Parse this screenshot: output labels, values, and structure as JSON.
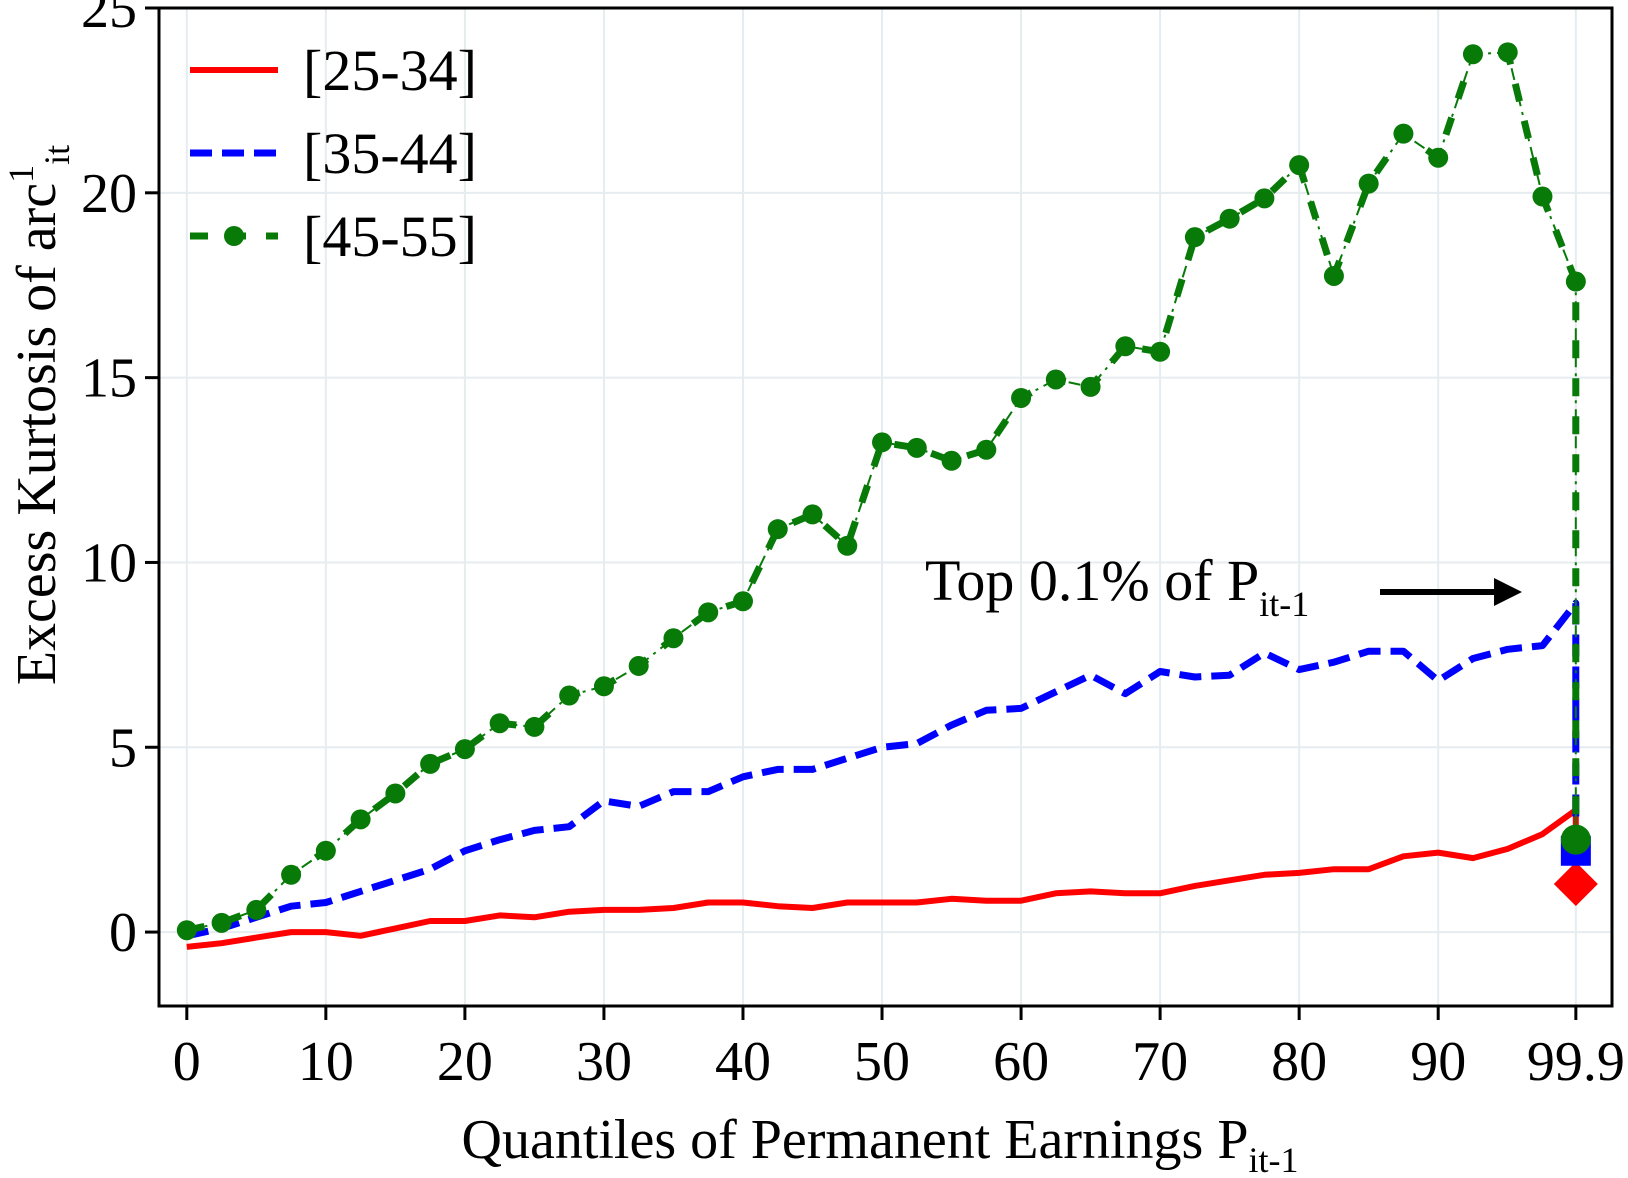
{
  "chart_data": {
    "type": "line",
    "title": "",
    "xlabel": "Quantiles of Permanent Earnings P",
    "xlabel_subscript": "it-1",
    "ylabel": "Excess Kurtosis of arc",
    "ylabel_superscript": "1",
    "ylabel_subscript": "it",
    "xlim": [
      -2,
      102.5
    ],
    "ylim": [
      -2,
      25
    ],
    "x_ticks": [
      {
        "value": 0,
        "label": "0"
      },
      {
        "value": 10,
        "label": "10"
      },
      {
        "value": 20,
        "label": "20"
      },
      {
        "value": 30,
        "label": "30"
      },
      {
        "value": 40,
        "label": "40"
      },
      {
        "value": 50,
        "label": "50"
      },
      {
        "value": 60,
        "label": "60"
      },
      {
        "value": 70,
        "label": "70"
      },
      {
        "value": 80,
        "label": "80"
      },
      {
        "value": 90,
        "label": "90"
      },
      {
        "value": 99.9,
        "label": "99.9"
      }
    ],
    "y_ticks": [
      {
        "value": 0,
        "label": "0"
      },
      {
        "value": 5,
        "label": "5"
      },
      {
        "value": 10,
        "label": "10"
      },
      {
        "value": 15,
        "label": "15"
      },
      {
        "value": 20,
        "label": "20"
      },
      {
        "value": 25,
        "label": "25"
      }
    ],
    "grid": true,
    "legend_position": "top-left",
    "x": [
      0,
      2.5,
      5,
      7.5,
      10,
      12.5,
      15,
      17.5,
      20,
      22.5,
      25,
      27.5,
      30,
      32.5,
      35,
      37.5,
      40,
      42.5,
      45,
      47.5,
      50,
      52.5,
      55,
      57.5,
      60,
      62.5,
      65,
      67.5,
      70,
      72.5,
      75,
      77.5,
      80,
      82.5,
      85,
      87.5,
      90,
      92.5,
      95,
      97.5,
      99.9
    ],
    "series": [
      {
        "name": "[25-34]",
        "color": "#ff0000",
        "style": "solid",
        "values": [
          -0.4,
          -0.3,
          -0.15,
          0,
          0,
          -0.1,
          0.1,
          0.3,
          0.3,
          0.45,
          0.4,
          0.55,
          0.6,
          0.6,
          0.65,
          0.8,
          0.8,
          0.7,
          0.65,
          0.8,
          0.8,
          0.8,
          0.9,
          0.85,
          0.85,
          1.05,
          1.1,
          1.05,
          1.05,
          1.25,
          1.4,
          1.55,
          1.6,
          1.7,
          1.7,
          2.05,
          2.15,
          2.0,
          2.25,
          2.65,
          3.3
        ],
        "top_point": {
          "x": 99.9,
          "y": 1.3,
          "marker": "diamond"
        }
      },
      {
        "name": "[35-44]",
        "color": "#0000ff",
        "style": "dashed",
        "values": [
          -0.1,
          0.1,
          0.4,
          0.7,
          0.8,
          1.1,
          1.4,
          1.7,
          2.2,
          2.5,
          2.75,
          2.85,
          3.55,
          3.4,
          3.8,
          3.8,
          4.2,
          4.4,
          4.4,
          4.7,
          5.0,
          5.1,
          5.6,
          6.0,
          6.05,
          6.5,
          6.95,
          6.45,
          7.05,
          6.9,
          6.95,
          7.55,
          7.1,
          7.3,
          7.6,
          7.6,
          6.8,
          7.4,
          7.65,
          7.75,
          8.9
        ],
        "top_point": {
          "x": 99.9,
          "y": 2.2,
          "marker": "square"
        }
      },
      {
        "name": "[45-55]",
        "color": "#087a08",
        "style": "dash-dot with circle markers",
        "values": [
          0.05,
          0.25,
          0.6,
          1.55,
          2.2,
          3.05,
          3.75,
          4.55,
          4.95,
          5.65,
          5.55,
          6.4,
          6.65,
          7.2,
          7.95,
          8.65,
          8.95,
          10.9,
          11.3,
          10.45,
          13.25,
          13.1,
          12.75,
          13.05,
          14.45,
          14.95,
          14.75,
          15.85,
          15.7,
          18.8,
          19.3,
          19.85,
          20.75,
          17.75,
          20.25,
          21.6,
          20.95,
          23.75,
          23.8,
          19.9,
          17.6
        ],
        "top_point": {
          "x": 99.9,
          "y": 2.5,
          "marker": "circle"
        }
      }
    ],
    "annotation": {
      "text": "Top 0.1% of P",
      "subscript": "it-1",
      "arrow_direction": "right"
    }
  }
}
